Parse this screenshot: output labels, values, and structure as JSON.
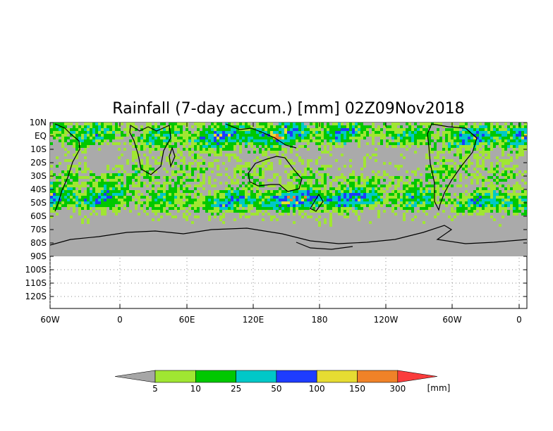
{
  "title": "Rainfall (7-day accum.) [mm] 02Z09Nov2018",
  "map": {
    "lat_labels": [
      "10N",
      "EQ",
      "10S",
      "20S",
      "30S",
      "40S",
      "50S",
      "60S",
      "70S",
      "80S",
      "90S",
      "100S",
      "110S",
      "120S"
    ],
    "lon_labels": [
      "60W",
      "0",
      "60E",
      "120E",
      "180",
      "120W",
      "60W",
      "0"
    ],
    "no_data_color": "#aaaaaa",
    "coastline_color": "#000000",
    "grid": "dotted"
  },
  "colorbar": {
    "colors": [
      "#a6a6a6",
      "#a0e632",
      "#00c800",
      "#00c8c8",
      "#1e3cff",
      "#e6dc32",
      "#f08228",
      "#fa3c3c"
    ],
    "labels": [
      "5",
      "10",
      "25",
      "50",
      "100",
      "150",
      "300"
    ],
    "unit": "[mm]"
  }
}
